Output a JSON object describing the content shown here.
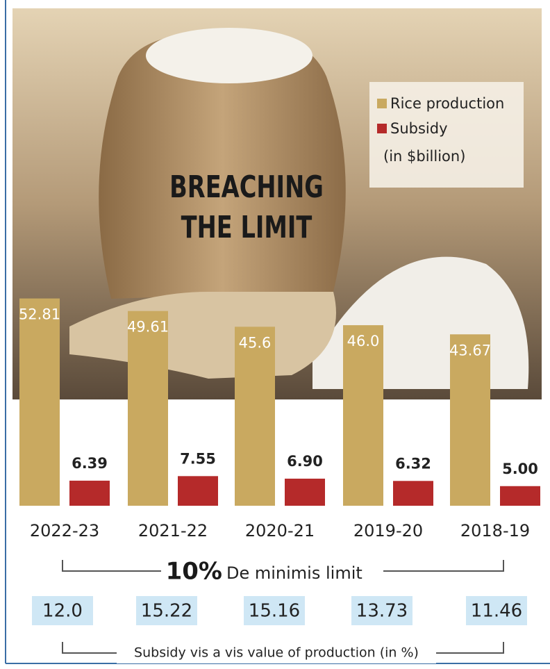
{
  "chart_data": {
    "type": "bar",
    "title_lines": [
      "BREACHING",
      "THE LIMIT"
    ],
    "categories": [
      "2022-23",
      "2021-22",
      "2020-21",
      "2019-20",
      "2018-19"
    ],
    "series": [
      {
        "name": "Rice production",
        "color": "#c9a960",
        "values": [
          52.81,
          49.61,
          45.6,
          46.0,
          43.67
        ],
        "value_labels": [
          "52.81",
          "49.61",
          "45.6",
          "46.0",
          "43.67"
        ]
      },
      {
        "name": "Subsidy",
        "color": "#b52a2a",
        "values": [
          6.39,
          7.55,
          6.9,
          6.32,
          5.0
        ],
        "value_labels": [
          "6.39",
          "7.55",
          "6.90",
          "6.32",
          "5.00"
        ]
      }
    ],
    "legend_note": "(in $billion)",
    "limit_value": "10%",
    "limit_label": "De minimis limit",
    "ratio_labels": [
      "12.0",
      "15.22",
      "15.16",
      "13.73",
      "11.46"
    ],
    "ratio_caption": "Subsidy vis a vis value of production (in %)"
  }
}
